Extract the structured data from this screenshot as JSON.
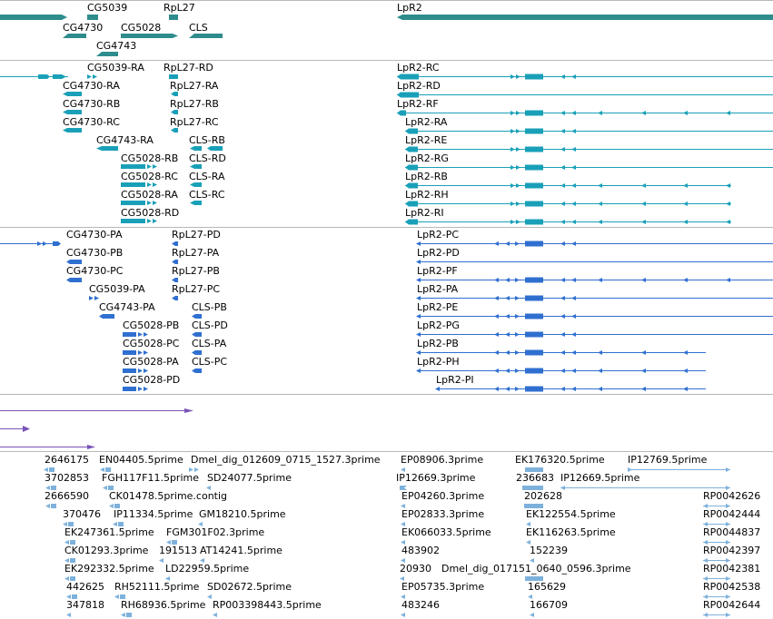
{
  "colors": {
    "gene": "#2f8c8c",
    "mrna": "#19a0b8",
    "cds": "#2f6fd0",
    "misc": "#7a52b8",
    "est": "#7db1dc",
    "separator": "#b8b8b8"
  },
  "genes": {
    "labels": [
      "CG5039",
      "RpL27",
      "LpR2",
      "CG4730",
      "CG5028",
      "CLS",
      "CG4743"
    ]
  },
  "transcripts": {
    "labels": [
      "CG5039-RA",
      "RpL27-RD",
      "LpR2-RC",
      "CG4730-RA",
      "RpL27-RA",
      "LpR2-RD",
      "CG4730-RB",
      "RpL27-RB",
      "LpR2-RF",
      "CG4730-RC",
      "RpL27-RC",
      "LpR2-RA",
      "CG4743-RA",
      "CLS-RB",
      "LpR2-RE",
      "CG5028-RB",
      "CLS-RD",
      "LpR2-RG",
      "CG5028-RC",
      "CLS-RA",
      "LpR2-RB",
      "CG5028-RA",
      "CLS-RC",
      "LpR2-RH",
      "CG5028-RD",
      "LpR2-RI"
    ]
  },
  "proteins": {
    "labels": [
      "CG4730-PA",
      "RpL27-PD",
      "LpR2-PC",
      "CG4730-PB",
      "RpL27-PA",
      "LpR2-PD",
      "CG4730-PC",
      "RpL27-PB",
      "LpR2-PF",
      "CG5039-PA",
      "RpL27-PC",
      "LpR2-PA",
      "CG4743-PA",
      "CLS-PB",
      "LpR2-PE",
      "CG5028-PB",
      "CLS-PD",
      "LpR2-PG",
      "CG5028-PC",
      "CLS-PA",
      "LpR2-PB",
      "CG5028-PA",
      "CLS-PC",
      "LpR2-PH",
      "CG5028-PD",
      "LpR2-PI"
    ]
  },
  "ests": {
    "labels": [
      "2646175",
      "EN04405.5prime",
      "Dmel_dig_012609_0715_1527.3prime",
      "EP08906.3prime",
      "EK176320.5prime",
      "IP12769.5prime",
      "3702853",
      "FGH117F11.5prime",
      "SD24077.5prime",
      "IP12669.3prime",
      "236683",
      "IP12669.5prime",
      "2666590",
      "CK01478.5prime.contig",
      "EP04260.3prime",
      "202628",
      "RP0042626",
      "370476",
      "IP11334.5prime",
      "GM18210.5prime",
      "EP02833.3prime",
      "EK122554.5prime",
      "RP0042444",
      "EK247361.5prime",
      "FGM301F02.3prime",
      "EK066033.5prime",
      "EK116263.5prime",
      "RP0044837",
      "CK01293.3prime",
      "191513",
      "AT14241.5prime",
      "483902",
      "152239",
      "RP0042397",
      "EK292332.5prime",
      "LD22959.5prime",
      "20930",
      "Dmel_dig_017151_0640_0596.3prime",
      "RP0042381",
      "442625",
      "RH52111.5prime",
      "SD02672.5prime",
      "EP05735.3prime",
      "165629",
      "RP0042538",
      "347818",
      "RH68936.5prime",
      "RP003398443.5prime",
      "483246",
      "166709",
      "RP0042644"
    ]
  }
}
